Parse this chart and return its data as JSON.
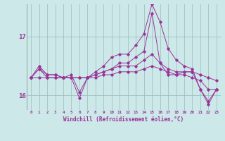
{
  "xlabel": "Windchill (Refroidissement éolien,°C)",
  "background_color": "#cce8e8",
  "line_color": "#993399",
  "grid_color": "#99bbbb",
  "axis_color": "#993399",
  "xlim": [
    -0.5,
    23.5
  ],
  "ylim": [
    15.75,
    17.55
  ],
  "yticks": [
    16,
    17
  ],
  "xticks": [
    0,
    1,
    2,
    3,
    4,
    5,
    6,
    7,
    8,
    9,
    10,
    11,
    12,
    13,
    14,
    15,
    16,
    17,
    18,
    19,
    20,
    21,
    22,
    23
  ],
  "series": [
    [
      16.3,
      16.45,
      16.3,
      16.3,
      16.3,
      16.3,
      15.95,
      16.3,
      16.35,
      16.4,
      16.45,
      16.55,
      16.55,
      16.65,
      16.75,
      17.4,
      16.55,
      16.35,
      16.35,
      16.4,
      16.4,
      16.1,
      15.85,
      16.1
    ],
    [
      16.3,
      16.5,
      16.35,
      16.35,
      16.3,
      16.3,
      16.3,
      16.3,
      16.35,
      16.4,
      16.45,
      16.5,
      16.5,
      16.5,
      16.6,
      16.7,
      16.55,
      16.45,
      16.4,
      16.4,
      16.4,
      16.35,
      16.3,
      16.25
    ],
    [
      16.3,
      16.3,
      16.3,
      16.3,
      16.3,
      16.3,
      16.3,
      16.3,
      16.3,
      16.35,
      16.35,
      16.4,
      16.4,
      16.4,
      16.45,
      16.5,
      16.45,
      16.4,
      16.35,
      16.35,
      16.3,
      16.25,
      16.1,
      16.1
    ],
    [
      16.3,
      16.45,
      16.35,
      16.35,
      16.3,
      16.35,
      16.05,
      16.3,
      16.4,
      16.5,
      16.65,
      16.7,
      16.7,
      16.85,
      17.05,
      17.55,
      17.25,
      16.8,
      16.6,
      16.5,
      16.45,
      16.1,
      15.9,
      16.1
    ]
  ]
}
